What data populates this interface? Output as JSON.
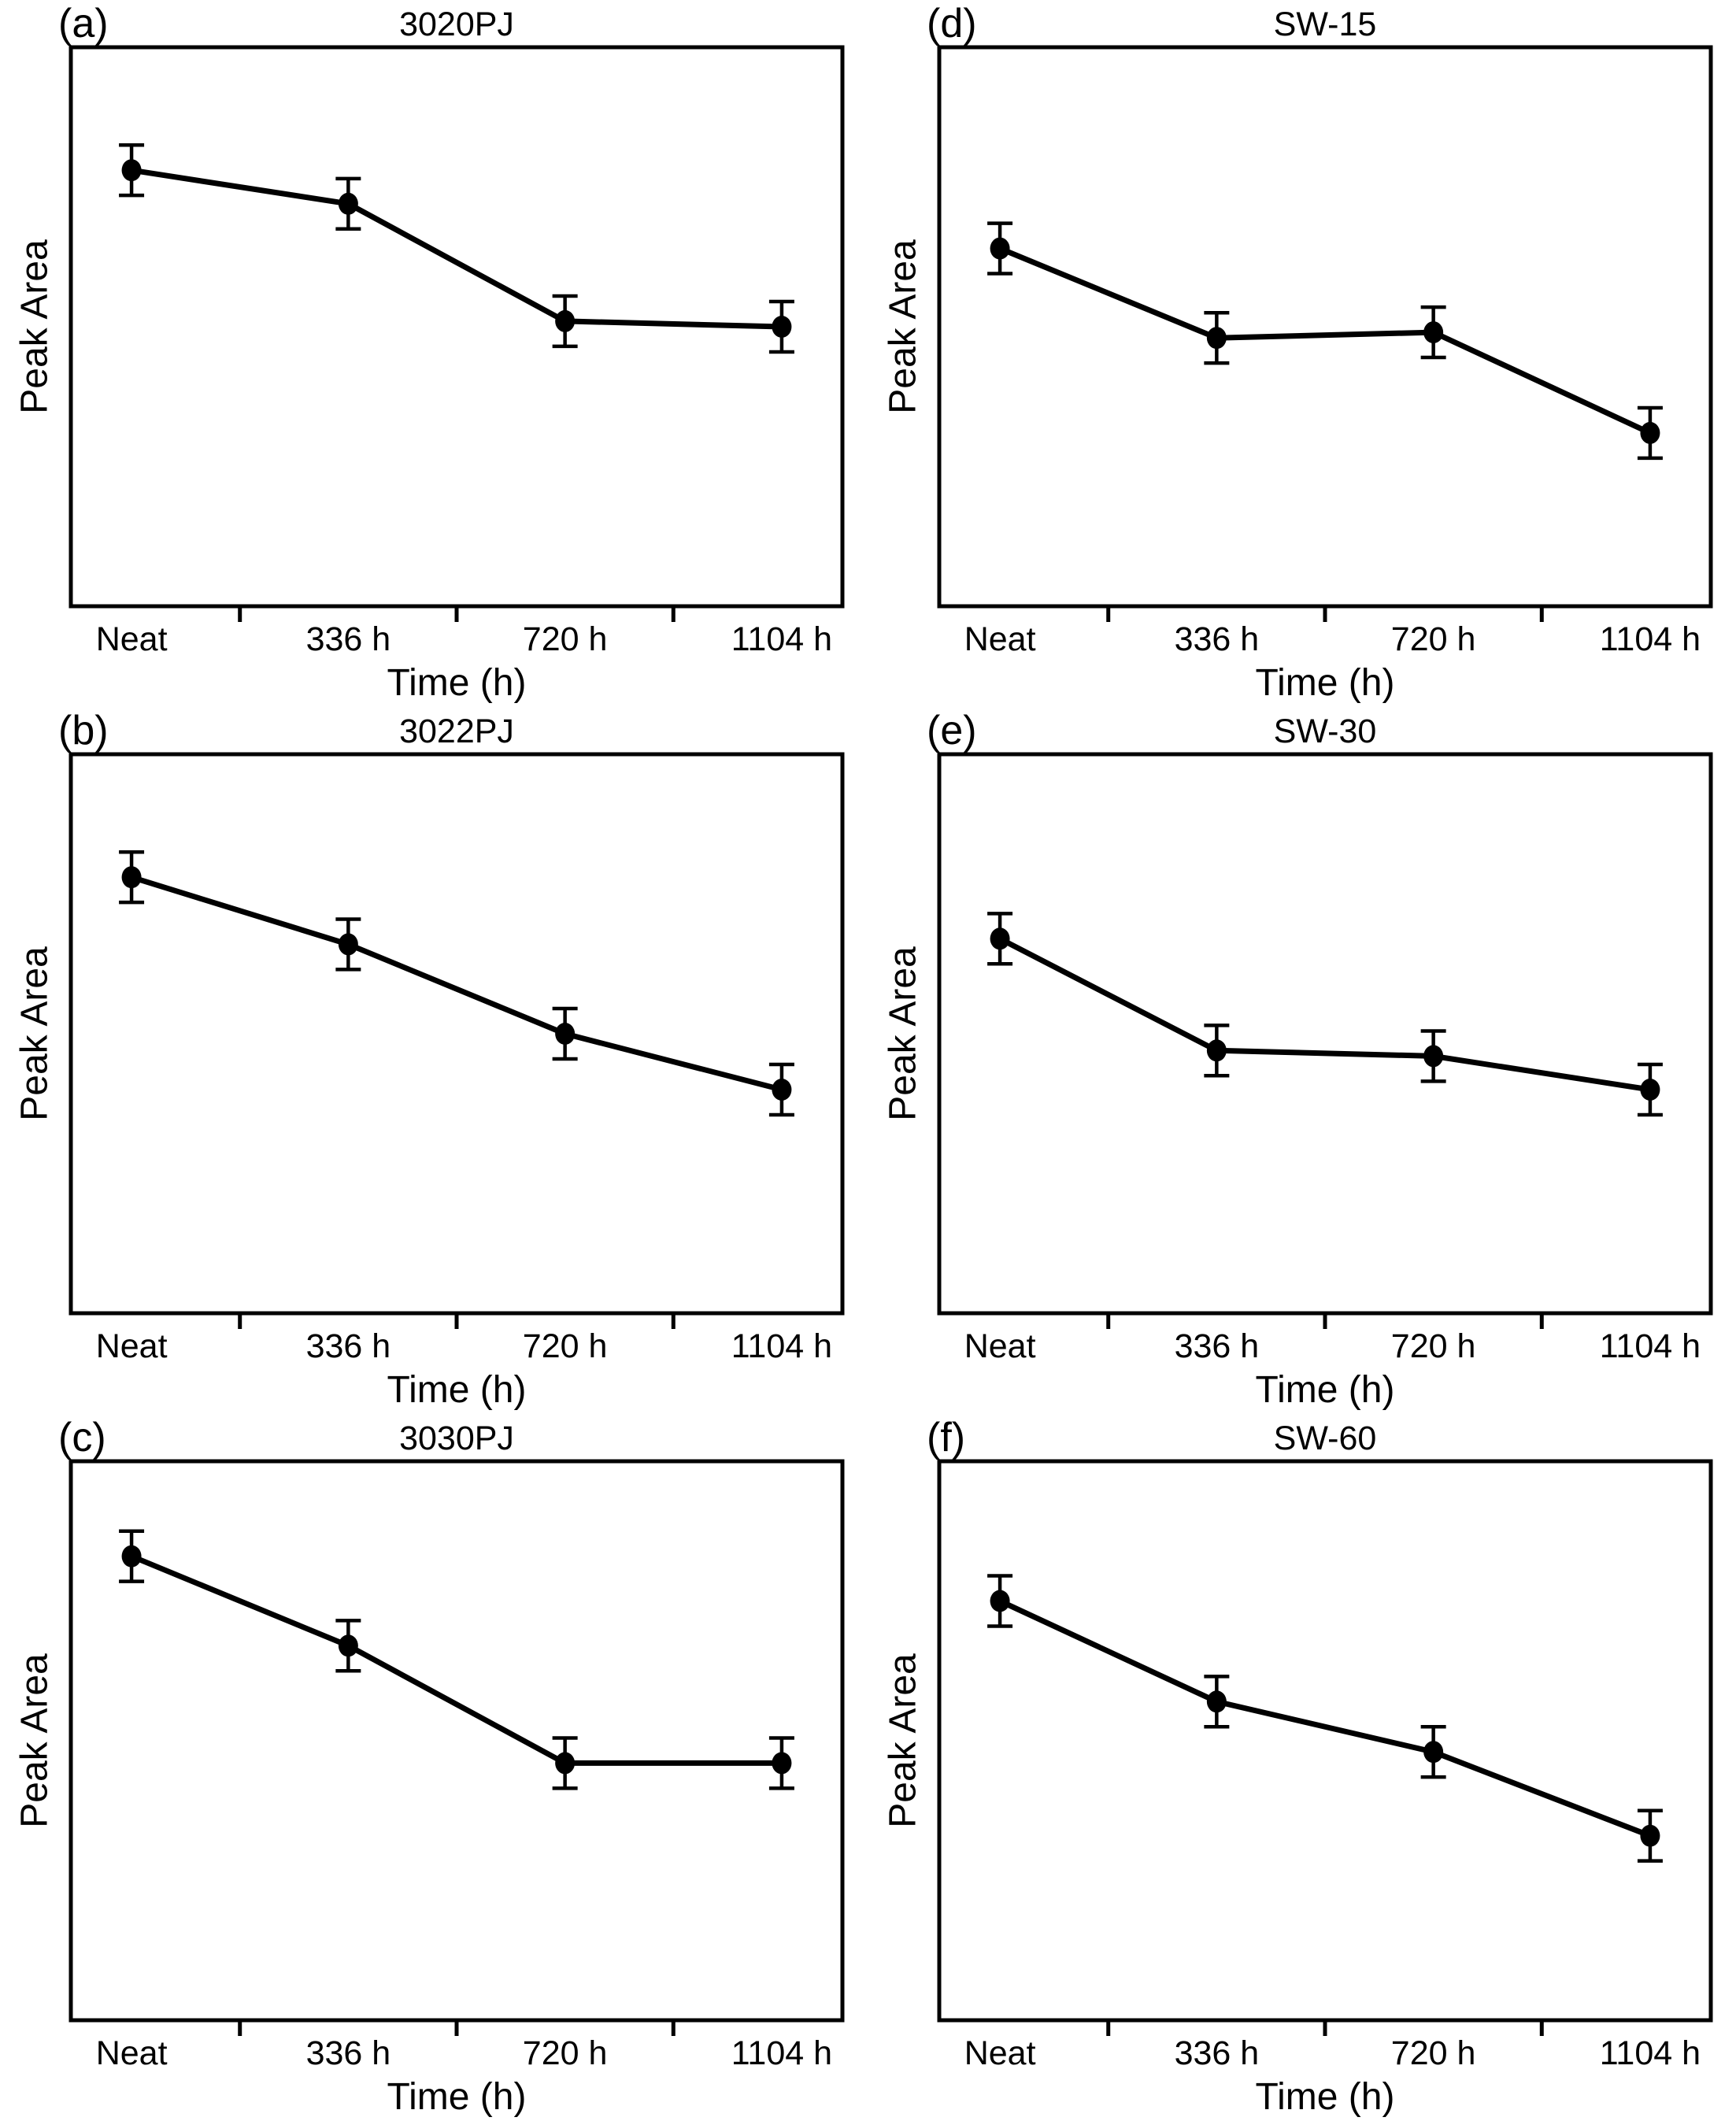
{
  "figure": {
    "layout": "2 columns x 3 rows of line plots",
    "shared": {
      "xlabel": "Time (h)",
      "ylabel": "Peak Area",
      "categories": [
        "Neat",
        "336 h",
        "720 h",
        "1104 h"
      ]
    },
    "colors": {
      "foreground": "#000000",
      "background": "#ffffff"
    }
  },
  "chart_data": [
    {
      "type": "line",
      "panel": "(a)",
      "title": "3020PJ",
      "xlabel": "Time (h)",
      "ylabel": "Peak Area",
      "categories": [
        "Neat",
        "336 h",
        "720 h",
        "1104 h"
      ],
      "values": [
        0.78,
        0.72,
        0.51,
        0.5
      ],
      "errors": [
        0.045,
        0.045,
        0.045,
        0.045
      ],
      "ylim": [
        0,
        1
      ],
      "y_units": "arbitrary (y axis unlabeled, no tick values shown)",
      "marker": "filled-circle",
      "error_bars": true,
      "grid": false,
      "legend": "none",
      "x_tick_marks": "between categories"
    },
    {
      "type": "line",
      "panel": "(b)",
      "title": "3022PJ",
      "xlabel": "Time (h)",
      "ylabel": "Peak Area",
      "categories": [
        "Neat",
        "336 h",
        "720 h",
        "1104 h"
      ],
      "values": [
        0.78,
        0.66,
        0.5,
        0.4
      ],
      "errors": [
        0.045,
        0.045,
        0.045,
        0.045
      ],
      "ylim": [
        0,
        1
      ],
      "y_units": "arbitrary (y axis unlabeled, no tick values shown)",
      "marker": "filled-circle",
      "error_bars": true,
      "grid": false,
      "legend": "none",
      "x_tick_marks": "between categories"
    },
    {
      "type": "line",
      "panel": "(c)",
      "title": "3030PJ",
      "xlabel": "Time (h)",
      "ylabel": "Peak Area",
      "categories": [
        "Neat",
        "336 h",
        "720 h",
        "1104 h"
      ],
      "values": [
        0.83,
        0.67,
        0.46,
        0.46
      ],
      "errors": [
        0.045,
        0.045,
        0.045,
        0.045
      ],
      "ylim": [
        0,
        1
      ],
      "y_units": "arbitrary (y axis unlabeled, no tick values shown)",
      "marker": "filled-circle",
      "error_bars": true,
      "grid": false,
      "legend": "none",
      "x_tick_marks": "between categories"
    },
    {
      "type": "line",
      "panel": "(d)",
      "title": "SW-15",
      "xlabel": "Time (h)",
      "ylabel": "Peak Area",
      "categories": [
        "Neat",
        "336 h",
        "720 h",
        "1104 h"
      ],
      "values": [
        0.64,
        0.48,
        0.49,
        0.31
      ],
      "errors": [
        0.045,
        0.045,
        0.045,
        0.045
      ],
      "ylim": [
        0,
        1
      ],
      "y_units": "arbitrary (y axis unlabeled, no tick values shown)",
      "marker": "filled-circle",
      "error_bars": true,
      "grid": false,
      "legend": "none",
      "x_tick_marks": "between categories"
    },
    {
      "type": "line",
      "panel": "(e)",
      "title": "SW-30",
      "xlabel": "Time (h)",
      "ylabel": "Peak Area",
      "categories": [
        "Neat",
        "336 h",
        "720 h",
        "1104 h"
      ],
      "values": [
        0.67,
        0.47,
        0.46,
        0.4
      ],
      "errors": [
        0.045,
        0.045,
        0.045,
        0.045
      ],
      "ylim": [
        0,
        1
      ],
      "y_units": "arbitrary (y axis unlabeled, no tick values shown)",
      "marker": "filled-circle",
      "error_bars": true,
      "grid": false,
      "legend": "none",
      "x_tick_marks": "between categories"
    },
    {
      "type": "line",
      "panel": "(f)",
      "title": "SW-60",
      "xlabel": "Time (h)",
      "ylabel": "Peak Area",
      "categories": [
        "Neat",
        "336 h",
        "720 h",
        "1104 h"
      ],
      "values": [
        0.75,
        0.57,
        0.48,
        0.33
      ],
      "errors": [
        0.045,
        0.045,
        0.045,
        0.045
      ],
      "ylim": [
        0,
        1
      ],
      "y_units": "arbitrary (y axis unlabeled, no tick values shown)",
      "marker": "filled-circle",
      "error_bars": true,
      "grid": false,
      "legend": "none",
      "x_tick_marks": "between categories"
    }
  ]
}
